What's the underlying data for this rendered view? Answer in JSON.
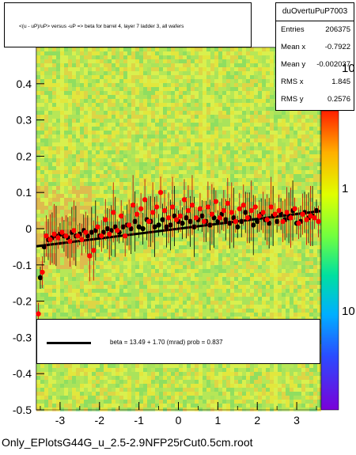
{
  "chart_data": {
    "type": "scatter",
    "title": "<(u - uP)/uP> versus -uP => beta for barrel 4, layer 7 ladder 3, all wafers",
    "xlim": [
      -3.6,
      3.6
    ],
    "ylim": [
      -0.5,
      0.5
    ],
    "x_ticks": [
      "-3",
      "-2",
      "-1",
      "0",
      "1",
      "2",
      "3"
    ],
    "y_ticks": [
      "-0.5",
      "-0.4",
      "-0.3",
      "-0.2",
      "-0.1",
      "0",
      "0.1",
      "0.2",
      "0.3",
      "0.4"
    ],
    "colorbar_labels": [
      "10",
      "1",
      "10"
    ],
    "stats": {
      "name": "duOvertuPuP7003",
      "rows": [
        {
          "key": "Entries",
          "value": "206375"
        },
        {
          "key": "Mean x",
          "value": "-0.7922"
        },
        {
          "key": "Mean y",
          "value": "-0.002037"
        },
        {
          "key": "RMS x",
          "value": "1.845"
        },
        {
          "key": "RMS y",
          "value": "0.2576"
        }
      ]
    },
    "fit": {
      "label": "beta =    13.49 +   1.70 (mrad) prob = 0.837",
      "intercept": 0.0,
      "slope": 0.01349
    },
    "series": [
      {
        "color": "#000000",
        "x": [
          -3.5,
          -3.4,
          -3.3,
          -3.2,
          -3.1,
          -3.0,
          -2.9,
          -2.8,
          -2.7,
          -2.6,
          -2.5,
          -2.4,
          -2.3,
          -2.2,
          -2.1,
          -2.0,
          -1.9,
          -1.8,
          -1.7,
          -1.6,
          -1.5,
          -1.4,
          -1.3,
          -1.2,
          -1.1,
          -1.0,
          -0.9,
          -0.8,
          -0.7,
          -0.6,
          -0.5,
          -0.4,
          -0.3,
          -0.2,
          -0.1,
          0.0,
          0.1,
          0.2,
          0.3,
          0.4,
          0.5,
          0.6,
          0.7,
          0.8,
          0.9,
          1.0,
          1.1,
          1.2,
          1.3,
          1.4,
          1.5,
          1.6,
          1.7,
          1.8,
          1.9,
          2.0,
          2.1,
          2.2,
          2.3,
          2.4,
          2.5,
          2.6,
          2.7,
          2.8,
          2.9,
          3.0,
          3.1,
          3.2,
          3.3,
          3.4,
          3.5
        ],
        "y": [
          -0.135,
          -0.05,
          -0.03,
          -0.025,
          -0.02,
          -0.015,
          -0.02,
          -0.025,
          -0.01,
          -0.02,
          -0.015,
          -0.005,
          -0.02,
          -0.01,
          -0.005,
          -0.02,
          -0.01,
          0.0,
          -0.005,
          0.005,
          -0.01,
          0.005,
          0.01,
          0.0,
          0.02,
          0.005,
          0.0,
          0.025,
          0.02,
          0.005,
          0.01,
          0.025,
          0.005,
          0.01,
          0.035,
          0.02,
          0.015,
          0.03,
          0.02,
          0.005,
          0.025,
          0.035,
          0.02,
          0.01,
          0.03,
          0.02,
          0.04,
          0.025,
          0.015,
          0.03,
          0.005,
          0.02,
          0.045,
          0.03,
          0.01,
          0.02,
          0.04,
          0.025,
          0.015,
          0.035,
          0.02,
          0.04,
          0.025,
          0.03,
          0.05,
          0.015,
          0.02,
          0.045,
          0.03,
          0.035,
          0.05
        ]
      },
      {
        "color": "#ff0000",
        "x": [
          -3.55,
          -3.45,
          -3.35,
          -3.25,
          -3.15,
          -3.05,
          -2.95,
          -2.85,
          -2.75,
          -2.65,
          -2.55,
          -2.45,
          -2.35,
          -2.25,
          -2.15,
          -2.05,
          -1.95,
          -1.85,
          -1.75,
          -1.65,
          -1.55,
          -1.45,
          -1.35,
          -1.25,
          -1.15,
          -1.05,
          -0.95,
          -0.85,
          -0.75,
          -0.65,
          -0.55,
          -0.45,
          -0.35,
          -0.25,
          -0.15,
          -0.05,
          0.05,
          0.15,
          0.25,
          0.35,
          0.45,
          0.55,
          0.65,
          0.75,
          0.85,
          0.95,
          1.05,
          1.15,
          1.25,
          1.35,
          1.45,
          1.55,
          1.65,
          1.75,
          1.85,
          1.95,
          2.05,
          2.15,
          2.25,
          2.35,
          2.45,
          2.55,
          2.65,
          2.75,
          2.85,
          2.95,
          3.05,
          3.15,
          3.25,
          3.35,
          3.45,
          3.55
        ],
        "y": [
          -0.235,
          -0.12,
          -0.02,
          -0.03,
          -0.015,
          -0.025,
          -0.01,
          -0.02,
          -0.035,
          -0.005,
          -0.02,
          -0.03,
          -0.01,
          -0.075,
          -0.06,
          0.005,
          -0.02,
          0.025,
          -0.015,
          0.045,
          -0.005,
          0.035,
          -0.02,
          0.01,
          0.065,
          0.04,
          0.055,
          0.08,
          0.02,
          0.045,
          0.06,
          0.1,
          0.05,
          0.03,
          0.06,
          0.025,
          0.035,
          0.08,
          0.05,
          0.065,
          0.03,
          0.055,
          0.02,
          0.06,
          0.04,
          0.075,
          0.03,
          0.05,
          0.07,
          0.045,
          0.02,
          0.055,
          0.065,
          0.03,
          0.05,
          0.06,
          0.035,
          0.045,
          0.025,
          0.06,
          0.04,
          0.05,
          0.02,
          0.045,
          0.03,
          0.055,
          0.015,
          0.04,
          0.025,
          0.035,
          0.03,
          0.02
        ]
      }
    ]
  },
  "footer_title": "Only_EPlotsG44G_u_2.5-2.9NFP25rCut0.5cm.root"
}
